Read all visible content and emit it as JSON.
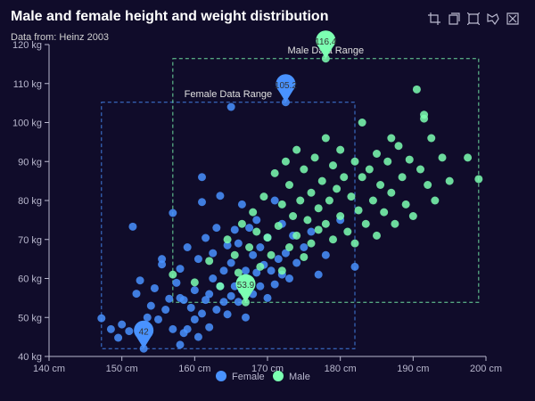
{
  "chart_data": {
    "type": "scatter",
    "title": "Male and female height and weight distribution",
    "subtitle": "Data from: Heinz 2003",
    "xlabel": "",
    "ylabel": "",
    "x_unit": "cm",
    "y_unit": "kg",
    "xlim": [
      140,
      200
    ],
    "ylim": [
      40,
      120
    ],
    "x_ticks": [
      140,
      150,
      160,
      170,
      180,
      190,
      200
    ],
    "y_ticks": [
      40,
      50,
      60,
      70,
      80,
      90,
      100,
      110,
      120
    ],
    "x_tick_labels": [
      "140 cm",
      "150 cm",
      "160 cm",
      "170 cm",
      "180 cm",
      "190 cm",
      "200 cm"
    ],
    "y_tick_labels": [
      "40 kg",
      "50 kg",
      "60 kg",
      "70 kg",
      "80 kg",
      "90 kg",
      "100 kg",
      "110 kg",
      "120 kg"
    ],
    "grid": false,
    "legend_position": "bottom-center",
    "series": [
      {
        "name": "Female",
        "color": "#4992ff",
        "points": [
          [
            147.2,
            49.8
          ],
          [
            148.5,
            47.0
          ],
          [
            149.5,
            44.8
          ],
          [
            150.0,
            48.2
          ],
          [
            151.0,
            46.5
          ],
          [
            151.5,
            73.3
          ],
          [
            152.0,
            56.1
          ],
          [
            152.5,
            59.5
          ],
          [
            153.0,
            42.0
          ],
          [
            153.5,
            50.0
          ],
          [
            154.0,
            53.0
          ],
          [
            154.5,
            57.5
          ],
          [
            155.0,
            49.5
          ],
          [
            155.5,
            65.0
          ],
          [
            155.5,
            63.6
          ],
          [
            156.0,
            52.0
          ],
          [
            156.5,
            54.8
          ],
          [
            157.0,
            47.0
          ],
          [
            157.0,
            76.8
          ],
          [
            157.5,
            58.9
          ],
          [
            158.0,
            55.0
          ],
          [
            158.0,
            62.5
          ],
          [
            158.5,
            46.0
          ],
          [
            158.5,
            54.5
          ],
          [
            159.0,
            47.0
          ],
          [
            159.0,
            68.0
          ],
          [
            159.5,
            52.5
          ],
          [
            160.0,
            49.5
          ],
          [
            160.0,
            57.0
          ],
          [
            160.5,
            45.0
          ],
          [
            160.5,
            65.0
          ],
          [
            161.0,
            51.0
          ],
          [
            161.0,
            79.6
          ],
          [
            161.5,
            54.5
          ],
          [
            161.5,
            70.4
          ],
          [
            162.0,
            47.5
          ],
          [
            162.0,
            56.0
          ],
          [
            162.5,
            60.0
          ],
          [
            162.5,
            66.5
          ],
          [
            163.0,
            52.0
          ],
          [
            163.0,
            73.0
          ],
          [
            163.5,
            58.0
          ],
          [
            163.5,
            81.2
          ],
          [
            164.0,
            54.0
          ],
          [
            164.0,
            62.0
          ],
          [
            164.5,
            50.8
          ],
          [
            164.5,
            68.5
          ],
          [
            165.0,
            55.5
          ],
          [
            165.0,
            64.0
          ],
          [
            165.5,
            58.0
          ],
          [
            165.5,
            72.5
          ],
          [
            166.0,
            54.0
          ],
          [
            166.0,
            69.0
          ],
          [
            166.5,
            57.0
          ],
          [
            166.5,
            79.0
          ],
          [
            167.0,
            50.0
          ],
          [
            167.0,
            62.0
          ],
          [
            167.5,
            59.0
          ],
          [
            167.5,
            73.0
          ],
          [
            168.0,
            56.0
          ],
          [
            168.0,
            66.0
          ],
          [
            168.5,
            61.5
          ],
          [
            168.5,
            75.0
          ],
          [
            169.0,
            58.0
          ],
          [
            169.0,
            68.0
          ],
          [
            169.5,
            63.5
          ],
          [
            170.0,
            55.0
          ],
          [
            170.0,
            70.5
          ],
          [
            170.5,
            62.0
          ],
          [
            171.0,
            58.5
          ],
          [
            171.0,
            80.0
          ],
          [
            171.5,
            65.0
          ],
          [
            172.0,
            61.0
          ],
          [
            172.0,
            74.0
          ],
          [
            172.5,
            105.2
          ],
          [
            172.5,
            66.5
          ],
          [
            173.0,
            60.0
          ],
          [
            173.5,
            71.0
          ],
          [
            174.0,
            64.0
          ],
          [
            175.0,
            68.0
          ],
          [
            176.0,
            72.0
          ],
          [
            177.0,
            61.0
          ],
          [
            178.0,
            66.0
          ],
          [
            180.0,
            75.0
          ],
          [
            182.0,
            63.0
          ],
          [
            165.0,
            104.0
          ],
          [
            158.0,
            43.0
          ],
          [
            161.0,
            86.0
          ]
        ]
      },
      {
        "name": "Male",
        "color": "#7cffb2",
        "points": [
          [
            157.0,
            61.0
          ],
          [
            160.0,
            59.0
          ],
          [
            162.0,
            64.5
          ],
          [
            163.5,
            58.0
          ],
          [
            164.5,
            70.0
          ],
          [
            165.5,
            66.0
          ],
          [
            166.0,
            61.5
          ],
          [
            166.5,
            74.0
          ],
          [
            167.0,
            53.9
          ],
          [
            167.5,
            68.0
          ],
          [
            168.0,
            77.0
          ],
          [
            168.5,
            72.0
          ],
          [
            169.0,
            63.0
          ],
          [
            169.5,
            81.0
          ],
          [
            170.0,
            70.5
          ],
          [
            170.5,
            66.0
          ],
          [
            171.0,
            87.0
          ],
          [
            171.5,
            73.5
          ],
          [
            172.0,
            62.0
          ],
          [
            172.0,
            79.0
          ],
          [
            172.5,
            90.0
          ],
          [
            173.0,
            68.0
          ],
          [
            173.0,
            84.0
          ],
          [
            173.5,
            76.0
          ],
          [
            174.0,
            93.0
          ],
          [
            174.0,
            71.0
          ],
          [
            174.5,
            80.0
          ],
          [
            175.0,
            65.5
          ],
          [
            175.0,
            88.0
          ],
          [
            175.5,
            75.0
          ],
          [
            176.0,
            82.0
          ],
          [
            176.0,
            69.0
          ],
          [
            176.5,
            91.0
          ],
          [
            177.0,
            78.0
          ],
          [
            177.0,
            72.5
          ],
          [
            177.5,
            85.0
          ],
          [
            178.0,
            74.0
          ],
          [
            178.0,
            96.0
          ],
          [
            178.0,
            116.4
          ],
          [
            178.5,
            80.0
          ],
          [
            179.0,
            89.0
          ],
          [
            179.0,
            70.0
          ],
          [
            179.5,
            83.0
          ],
          [
            180.0,
            76.0
          ],
          [
            180.0,
            93.0
          ],
          [
            180.5,
            86.0
          ],
          [
            181.0,
            72.0
          ],
          [
            181.5,
            81.0
          ],
          [
            182.0,
            90.0
          ],
          [
            182.0,
            69.0
          ],
          [
            182.5,
            77.5
          ],
          [
            183.0,
            86.0
          ],
          [
            183.5,
            74.0
          ],
          [
            184.0,
            88.0
          ],
          [
            184.5,
            80.0
          ],
          [
            185.0,
            92.0
          ],
          [
            185.0,
            71.0
          ],
          [
            185.5,
            84.0
          ],
          [
            186.0,
            77.0
          ],
          [
            186.5,
            90.0
          ],
          [
            187.0,
            82.0
          ],
          [
            187.5,
            74.0
          ],
          [
            188.0,
            94.0
          ],
          [
            188.5,
            86.0
          ],
          [
            189.0,
            79.0
          ],
          [
            189.5,
            90.5
          ],
          [
            190.0,
            76.0
          ],
          [
            190.5,
            108.5
          ],
          [
            191.0,
            88.0
          ],
          [
            191.5,
            101.0
          ],
          [
            192.0,
            84.0
          ],
          [
            192.5,
            96.0
          ],
          [
            193.0,
            80.0
          ],
          [
            194.0,
            91.0
          ],
          [
            195.0,
            85.0
          ],
          [
            197.5,
            91.0
          ],
          [
            199.0,
            85.5
          ],
          [
            191.5,
            102.0
          ],
          [
            187.0,
            96.0
          ],
          [
            183.0,
            100.0
          ]
        ]
      }
    ],
    "mark_points": [
      {
        "series": "Female",
        "label": "105.2",
        "x": 172.5,
        "y": 105.2
      },
      {
        "series": "Female",
        "label": "42",
        "x": 153.0,
        "y": 42.0
      },
      {
        "series": "Male",
        "label": "116.4",
        "x": 178.0,
        "y": 116.4
      },
      {
        "series": "Male",
        "label": "53.9",
        "x": 167.0,
        "y": 53.9
      }
    ],
    "mark_areas": [
      {
        "series": "Female",
        "label": "Female Data Range",
        "x": [
          147.2,
          182.0
        ],
        "y": [
          42.0,
          105.2
        ]
      },
      {
        "series": "Male",
        "label": "Male Data Range",
        "x": [
          157.0,
          199.0
        ],
        "y": [
          53.9,
          116.4
        ]
      }
    ]
  },
  "toolbar": {
    "icons": [
      "zoom-icon",
      "zoom-reset-icon",
      "data-zoom-icon",
      "lasso-select-icon",
      "clear-select-icon"
    ]
  }
}
